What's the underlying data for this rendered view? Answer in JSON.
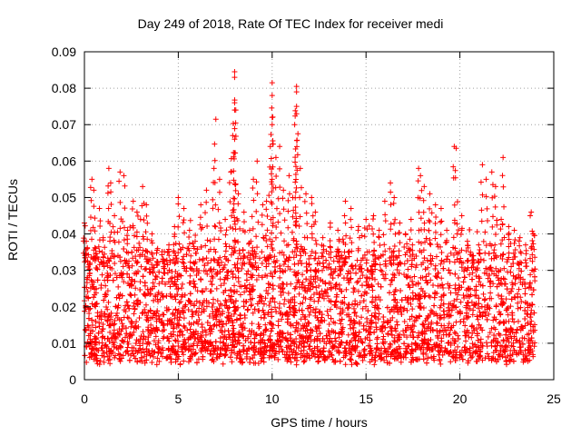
{
  "chart_data": {
    "type": "scatter",
    "title": "Day 249 of 2018, Rate Of TEC Index for receiver medi",
    "xlabel": "GPS time / hours",
    "ylabel": "ROTI / TECUs",
    "xlim": [
      0,
      25
    ],
    "ylim": [
      0,
      0.09
    ],
    "xticks": [
      0,
      5,
      10,
      15,
      20,
      25
    ],
    "xtick_labels": [
      "0",
      "5",
      "10",
      "15",
      "20",
      "25"
    ],
    "yticks": [
      0,
      0.01,
      0.02,
      0.03,
      0.04,
      0.05,
      0.06,
      0.07,
      0.08,
      0.09
    ],
    "ytick_labels": [
      "0",
      "0.01",
      "0.02",
      "0.03",
      "0.04",
      "0.05",
      "0.06",
      "0.07",
      "0.08",
      "0.09"
    ],
    "grid": true,
    "marker": "+",
    "color": "#ff0000",
    "series": [
      {
        "name": "ROTI",
        "points": [
          [
            0.0,
            0.043
          ],
          [
            0.1,
            0.038
          ],
          [
            0.3,
            0.032
          ],
          [
            0.4,
            0.055
          ],
          [
            0.5,
            0.052
          ],
          [
            0.6,
            0.036
          ],
          [
            0.8,
            0.047
          ],
          [
            1.0,
            0.039
          ],
          [
            1.3,
            0.058
          ],
          [
            1.4,
            0.054
          ],
          [
            1.6,
            0.045
          ],
          [
            1.9,
            0.057
          ],
          [
            2.1,
            0.056
          ],
          [
            2.3,
            0.041
          ],
          [
            2.6,
            0.049
          ],
          [
            2.8,
            0.046
          ],
          [
            3.1,
            0.053
          ],
          [
            3.3,
            0.048
          ],
          [
            3.6,
            0.04
          ],
          [
            3.9,
            0.036
          ],
          [
            4.2,
            0.033
          ],
          [
            4.5,
            0.037
          ],
          [
            4.8,
            0.042
          ],
          [
            5.0,
            0.05
          ],
          [
            5.3,
            0.047
          ],
          [
            5.6,
            0.041
          ],
          [
            5.9,
            0.038
          ],
          [
            6.2,
            0.048
          ],
          [
            6.5,
            0.052
          ],
          [
            6.9,
            0.058
          ],
          [
            7.0,
            0.0715
          ],
          [
            7.2,
            0.055
          ],
          [
            7.5,
            0.044
          ],
          [
            7.8,
            0.057
          ],
          [
            8.0,
            0.0845
          ],
          [
            8.0,
            0.083
          ],
          [
            8.0,
            0.076
          ],
          [
            8.0,
            0.074
          ],
          [
            7.9,
            0.067
          ],
          [
            8.0,
            0.066
          ],
          [
            8.2,
            0.051
          ],
          [
            8.5,
            0.046
          ],
          [
            8.8,
            0.041
          ],
          [
            9.0,
            0.055
          ],
          [
            9.2,
            0.06
          ],
          [
            9.5,
            0.048
          ],
          [
            9.7,
            0.049
          ],
          [
            9.9,
            0.064
          ],
          [
            10.0,
            0.0815
          ],
          [
            10.0,
            0.078
          ],
          [
            10.0,
            0.072
          ],
          [
            10.0,
            0.07
          ],
          [
            10.2,
            0.061
          ],
          [
            10.4,
            0.064
          ],
          [
            10.6,
            0.052
          ],
          [
            10.9,
            0.056
          ],
          [
            11.1,
            0.05
          ],
          [
            11.3,
            0.0805
          ],
          [
            11.3,
            0.079
          ],
          [
            11.3,
            0.075
          ],
          [
            11.3,
            0.073
          ],
          [
            11.2,
            0.07
          ],
          [
            11.5,
            0.058
          ],
          [
            11.8,
            0.051
          ],
          [
            12.1,
            0.05
          ],
          [
            12.3,
            0.046
          ],
          [
            12.7,
            0.039
          ],
          [
            13.1,
            0.043
          ],
          [
            13.5,
            0.041
          ],
          [
            13.9,
            0.049
          ],
          [
            14.2,
            0.047
          ],
          [
            14.6,
            0.042
          ],
          [
            15.0,
            0.044
          ],
          [
            15.4,
            0.045
          ],
          [
            15.7,
            0.041
          ],
          [
            16.0,
            0.049
          ],
          [
            16.3,
            0.054
          ],
          [
            16.5,
            0.05
          ],
          [
            16.8,
            0.043
          ],
          [
            17.1,
            0.04
          ],
          [
            17.4,
            0.044
          ],
          [
            17.8,
            0.058
          ],
          [
            17.9,
            0.056
          ],
          [
            18.1,
            0.053
          ],
          [
            18.4,
            0.051
          ],
          [
            18.7,
            0.048
          ],
          [
            19.0,
            0.047
          ],
          [
            19.3,
            0.041
          ],
          [
            19.7,
            0.064
          ],
          [
            19.8,
            0.0635
          ],
          [
            20.1,
            0.045
          ],
          [
            20.4,
            0.038
          ],
          [
            20.7,
            0.034
          ],
          [
            21.0,
            0.037
          ],
          [
            21.2,
            0.059
          ],
          [
            21.4,
            0.055
          ],
          [
            21.7,
            0.057
          ],
          [
            21.9,
            0.053
          ],
          [
            22.2,
            0.044
          ],
          [
            22.3,
            0.061
          ],
          [
            22.6,
            0.042
          ],
          [
            22.9,
            0.041
          ],
          [
            23.2,
            0.039
          ],
          [
            23.5,
            0.037
          ],
          [
            23.8,
            0.046
          ],
          [
            23.9,
            0.04
          ]
        ],
        "baseline_range": [
          0.004,
          0.033
        ]
      }
    ]
  }
}
